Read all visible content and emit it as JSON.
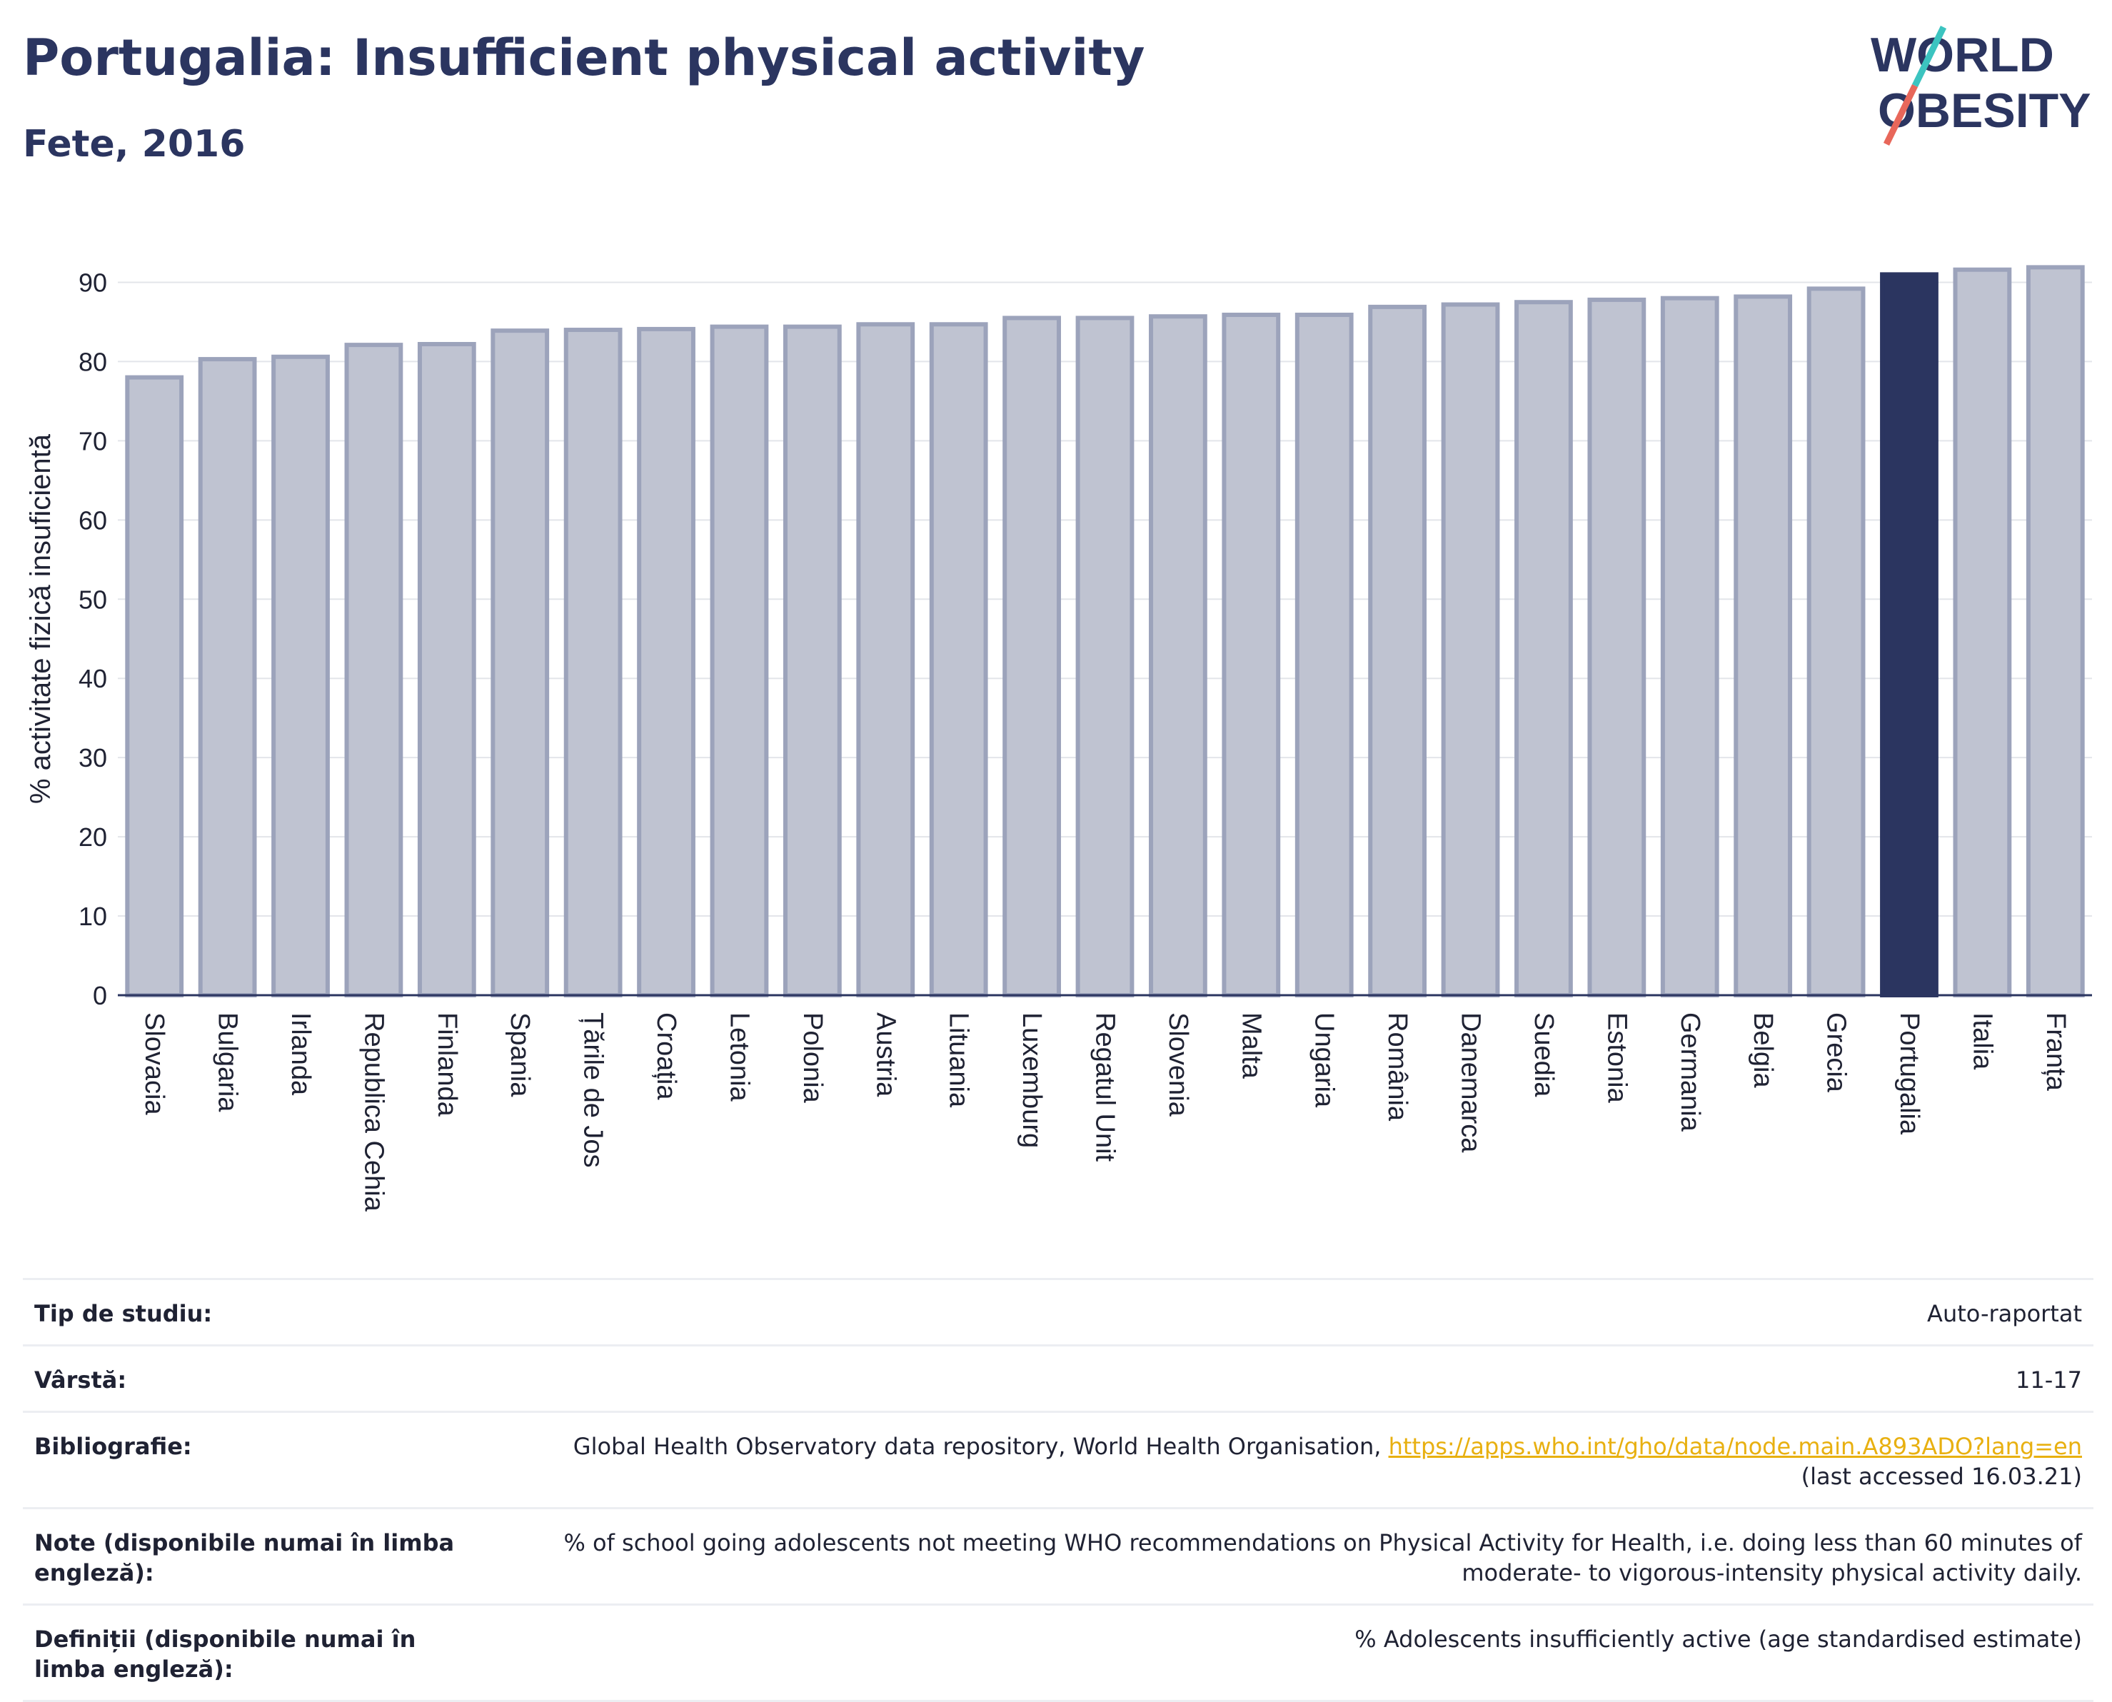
{
  "header": {
    "title": "Portugalia: Insufficient physical activity",
    "subtitle": "Fete, 2016"
  },
  "logo": {
    "line1": "WORLD",
    "line2": "OBESITY",
    "text_color": "#2b3560",
    "slash_teal": "#3cc4c0",
    "slash_red": "#e8675a"
  },
  "chart_data": {
    "type": "bar",
    "ylabel": "% activitate fizică insuficientă",
    "xlabel": "",
    "ylim": [
      0,
      95
    ],
    "yticks": [
      0,
      10,
      20,
      30,
      40,
      50,
      60,
      70,
      80,
      90
    ],
    "grid": true,
    "categories": [
      "Slovacia",
      "Bulgaria",
      "Irlanda",
      "Republica Cehia",
      "Finlanda",
      "Spania",
      "Țările de Jos",
      "Croația",
      "Letonia",
      "Polonia",
      "Austria",
      "Lituania",
      "Luxemburg",
      "Regatul Unit",
      "Slovenia",
      "Malta",
      "Ungaria",
      "România",
      "Danemarca",
      "Suedia",
      "Estonia",
      "Germania",
      "Belgia",
      "Grecia",
      "Portugalia",
      "Italia",
      "Franța"
    ],
    "values": [
      78.0,
      80.3,
      80.6,
      82.1,
      82.2,
      83.9,
      84.0,
      84.1,
      84.4,
      84.4,
      84.7,
      84.7,
      85.5,
      85.5,
      85.7,
      85.9,
      85.9,
      86.9,
      87.2,
      87.5,
      87.8,
      88.0,
      88.2,
      89.2,
      91.0,
      91.6,
      91.9
    ],
    "highlight": "Portugalia",
    "colors": {
      "bar": "#bfc3d1",
      "bar_edge": "#9ca3bb",
      "highlight": "#2b3560",
      "grid": "#e3e5ea",
      "axis": "#2b3560"
    }
  },
  "info": {
    "rows": [
      {
        "label": "Tip de studiu:",
        "value": "Auto-raportat"
      },
      {
        "label": "Vârstă:",
        "value": "11-17"
      },
      {
        "label": "Bibliografie:",
        "value_prefix": "Global Health Observatory data repository, World Health Organisation, ",
        "link": "https://apps.who.int/gho/data/node.main.A893ADO?lang=en",
        "value_suffix": "(last accessed 16.03.21)"
      },
      {
        "label": "Note (disponibile numai în limba engleză):",
        "value": "% of school going adolescents not meeting WHO recommendations on Physical Activity for Health, i.e. doing less than 60 minutes of",
        "value_line2": "moderate- to vigorous-intensity physical activity daily."
      },
      {
        "label": "Definiții (disponibile numai în limba engleză):",
        "value": "% Adolescents insufficiently active (age standardised estimate)"
      }
    ],
    "link_color": "#e8b010"
  }
}
